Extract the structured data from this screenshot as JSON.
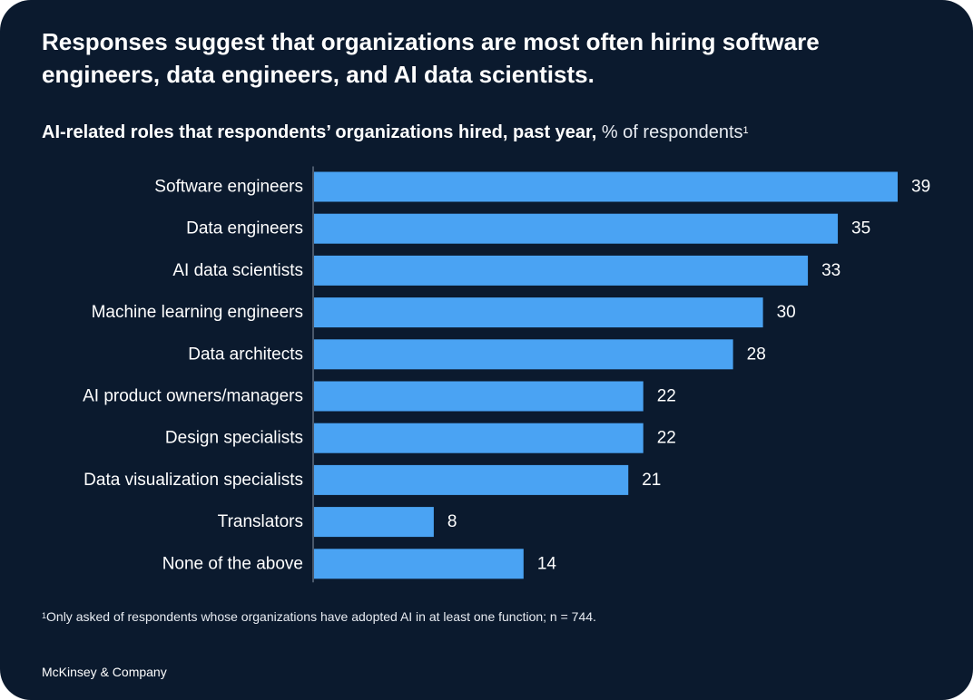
{
  "headline": "Responses suggest that organizations are most often hiring software engineers, data engineers, and AI data scientists.",
  "subtitle": {
    "bold": "AI-related roles that respondents’ organizations hired, past year,",
    "unit": "% of respondents",
    "footnote_marker": "1"
  },
  "chart_data": {
    "type": "bar",
    "orientation": "horizontal",
    "title": "AI-related roles that respondents’ organizations hired, past year, % of respondents",
    "categories": [
      "Software engineers",
      "Data engineers",
      "AI data scientists",
      "Machine learning engineers",
      "Data architects",
      "AI product owners/managers",
      "Design specialists",
      "Data visualization specialists",
      "Translators",
      "None of the above"
    ],
    "values": [
      39,
      35,
      33,
      30,
      28,
      22,
      22,
      21,
      8,
      14
    ],
    "xlim": [
      0,
      39
    ],
    "grid": false,
    "data_labels": true,
    "bar_color": "#4aa3f3"
  },
  "footnote": {
    "marker": "1",
    "text": "Only asked of respondents whose organizations have adopted AI in at least one function; n = 744."
  },
  "brand": "McKinsey & Company",
  "colors": {
    "background": "#0b1a2e",
    "bar": "#4aa3f3",
    "text": "#ffffff"
  }
}
